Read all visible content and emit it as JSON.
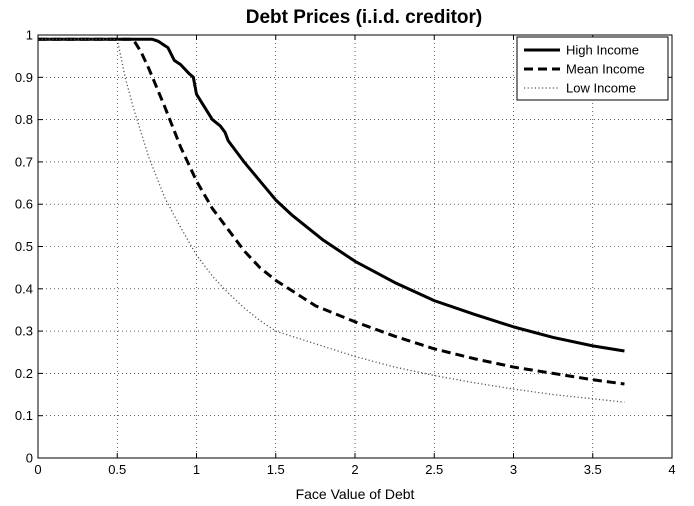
{
  "chart_data": {
    "type": "line",
    "title": "Debt Prices (i.i.d. creditor)",
    "xlabel": "Face Value of Debt",
    "ylabel": "",
    "xlim": [
      0,
      4
    ],
    "ylim": [
      0,
      1
    ],
    "xticks": [
      0,
      0.5,
      1,
      1.5,
      2,
      2.5,
      3,
      3.5,
      4
    ],
    "yticks": [
      0,
      0.1,
      0.2,
      0.3,
      0.4,
      0.5,
      0.6,
      0.7,
      0.8,
      0.9,
      1
    ],
    "xtick_labels": [
      "0",
      "0.5",
      "1",
      "1.5",
      "2",
      "2.5",
      "3",
      "3.5",
      "4"
    ],
    "ytick_labels": [
      "0",
      "0.1",
      "0.2",
      "0.3",
      "0.4",
      "0.5",
      "0.6",
      "0.7",
      "0.8",
      "0.9",
      "1"
    ],
    "grid": true,
    "legend_position": "top-right",
    "series": [
      {
        "name": "High Income",
        "style": "solid",
        "color": "#000000",
        "x": [
          0,
          0.72,
          0.76,
          0.8,
          0.82,
          0.84,
          0.86,
          0.9,
          0.95,
          0.98,
          1.0,
          1.05,
          1.1,
          1.15,
          1.18,
          1.2,
          1.3,
          1.4,
          1.5,
          1.6,
          1.8,
          2.0,
          2.25,
          2.5,
          2.75,
          3.0,
          3.25,
          3.5,
          3.7
        ],
        "y": [
          0.99,
          0.99,
          0.985,
          0.975,
          0.97,
          0.955,
          0.94,
          0.93,
          0.91,
          0.9,
          0.86,
          0.83,
          0.8,
          0.785,
          0.77,
          0.75,
          0.7,
          0.655,
          0.61,
          0.575,
          0.515,
          0.465,
          0.415,
          0.372,
          0.34,
          0.31,
          0.285,
          0.265,
          0.253
        ]
      },
      {
        "name": "Mean Income",
        "style": "dashed",
        "color": "#000000",
        "x": [
          0,
          0.6,
          0.65,
          0.7,
          0.8,
          0.9,
          1.0,
          1.1,
          1.2,
          1.3,
          1.4,
          1.5,
          1.75,
          2.0,
          2.25,
          2.5,
          2.75,
          3.0,
          3.25,
          3.5,
          3.7
        ],
        "y": [
          0.99,
          0.99,
          0.96,
          0.92,
          0.83,
          0.735,
          0.655,
          0.59,
          0.54,
          0.49,
          0.45,
          0.42,
          0.36,
          0.322,
          0.288,
          0.258,
          0.235,
          0.215,
          0.2,
          0.185,
          0.175
        ]
      },
      {
        "name": "Low Income",
        "style": "dotted",
        "color": "#555555",
        "x": [
          0,
          0.5,
          0.55,
          0.6,
          0.7,
          0.8,
          0.9,
          1.0,
          1.1,
          1.2,
          1.3,
          1.4,
          1.5,
          1.75,
          2.0,
          2.25,
          2.5,
          2.75,
          3.0,
          3.25,
          3.5,
          3.7
        ],
        "y": [
          0.99,
          0.99,
          0.9,
          0.83,
          0.71,
          0.615,
          0.545,
          0.48,
          0.43,
          0.39,
          0.355,
          0.325,
          0.3,
          0.27,
          0.24,
          0.215,
          0.195,
          0.178,
          0.163,
          0.15,
          0.14,
          0.132
        ]
      }
    ]
  }
}
